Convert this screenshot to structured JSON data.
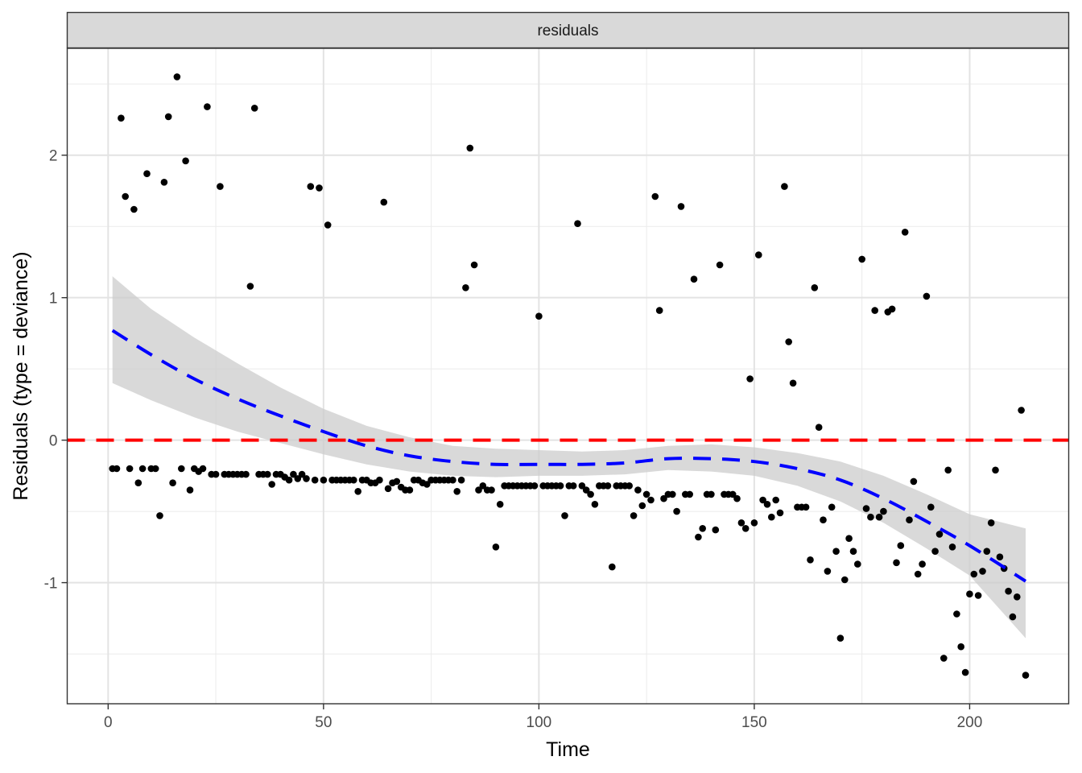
{
  "chart_data": {
    "type": "scatter",
    "facet_label": "residuals",
    "xlabel": "Time",
    "ylabel": "Residuals (type = deviance)",
    "xlim": [
      -9.5,
      223
    ],
    "ylim": [
      -1.85,
      2.75
    ],
    "x_ticks": [
      0,
      50,
      100,
      150,
      200
    ],
    "y_ticks": [
      -1,
      0,
      1,
      2
    ],
    "x_tick_labels": [
      "0",
      "50",
      "100",
      "150",
      "200"
    ],
    "y_tick_labels": [
      "-1",
      "0",
      "1",
      "2"
    ],
    "grid": true,
    "reference_line": {
      "y": 0,
      "color": "#ff0000",
      "style": "dashed"
    },
    "colors": {
      "points": "#000000",
      "smooth_line": "#0000ff",
      "ribbon": "#cccccc",
      "reference": "#ff0000",
      "strip_bg": "#d9d9d9"
    },
    "points": [
      [
        1,
        -0.2
      ],
      [
        2,
        -0.2
      ],
      [
        3,
        2.26
      ],
      [
        4,
        1.71
      ],
      [
        5,
        -0.2
      ],
      [
        6,
        1.62
      ],
      [
        7,
        -0.3
      ],
      [
        8,
        -0.2
      ],
      [
        9,
        1.87
      ],
      [
        10,
        -0.2
      ],
      [
        11,
        -0.2
      ],
      [
        12,
        -0.53
      ],
      [
        13,
        1.81
      ],
      [
        14,
        2.27
      ],
      [
        15,
        -0.3
      ],
      [
        16,
        2.55
      ],
      [
        17,
        -0.2
      ],
      [
        18,
        1.96
      ],
      [
        19,
        -0.35
      ],
      [
        20,
        -0.2
      ],
      [
        21,
        -0.22
      ],
      [
        22,
        -0.2
      ],
      [
        23,
        2.34
      ],
      [
        24,
        -0.24
      ],
      [
        25,
        -0.24
      ],
      [
        26,
        1.78
      ],
      [
        27,
        -0.24
      ],
      [
        28,
        -0.24
      ],
      [
        29,
        -0.24
      ],
      [
        30,
        -0.24
      ],
      [
        31,
        -0.24
      ],
      [
        32,
        -0.24
      ],
      [
        33,
        1.08
      ],
      [
        34,
        2.33
      ],
      [
        35,
        -0.24
      ],
      [
        36,
        -0.24
      ],
      [
        37,
        -0.24
      ],
      [
        38,
        -0.31
      ],
      [
        39,
        -0.24
      ],
      [
        40,
        -0.24
      ],
      [
        41,
        -0.26
      ],
      [
        42,
        -0.28
      ],
      [
        43,
        -0.24
      ],
      [
        44,
        -0.27
      ],
      [
        45,
        -0.24
      ],
      [
        46,
        -0.27
      ],
      [
        47,
        1.78
      ],
      [
        48,
        -0.28
      ],
      [
        49,
        1.77
      ],
      [
        50,
        -0.28
      ],
      [
        51,
        1.51
      ],
      [
        52,
        -0.28
      ],
      [
        53,
        -0.28
      ],
      [
        54,
        -0.28
      ],
      [
        55,
        -0.28
      ],
      [
        56,
        -0.28
      ],
      [
        57,
        -0.28
      ],
      [
        58,
        -0.36
      ],
      [
        59,
        -0.28
      ],
      [
        60,
        -0.28
      ],
      [
        61,
        -0.3
      ],
      [
        62,
        -0.3
      ],
      [
        63,
        -0.28
      ],
      [
        64,
        1.67
      ],
      [
        65,
        -0.34
      ],
      [
        66,
        -0.3
      ],
      [
        67,
        -0.29
      ],
      [
        68,
        -0.33
      ],
      [
        69,
        -0.35
      ],
      [
        70,
        -0.35
      ],
      [
        71,
        -0.28
      ],
      [
        72,
        -0.28
      ],
      [
        73,
        -0.3
      ],
      [
        74,
        -0.31
      ],
      [
        75,
        -0.28
      ],
      [
        76,
        -0.28
      ],
      [
        77,
        -0.28
      ],
      [
        78,
        -0.28
      ],
      [
        79,
        -0.28
      ],
      [
        80,
        -0.28
      ],
      [
        81,
        -0.36
      ],
      [
        82,
        -0.28
      ],
      [
        83,
        1.07
      ],
      [
        84,
        2.05
      ],
      [
        85,
        1.23
      ],
      [
        86,
        -0.35
      ],
      [
        87,
        -0.32
      ],
      [
        88,
        -0.35
      ],
      [
        89,
        -0.35
      ],
      [
        90,
        -0.75
      ],
      [
        91,
        -0.45
      ],
      [
        92,
        -0.32
      ],
      [
        93,
        -0.32
      ],
      [
        94,
        -0.32
      ],
      [
        95,
        -0.32
      ],
      [
        96,
        -0.32
      ],
      [
        97,
        -0.32
      ],
      [
        98,
        -0.32
      ],
      [
        99,
        -0.32
      ],
      [
        100,
        0.87
      ],
      [
        101,
        -0.32
      ],
      [
        102,
        -0.32
      ],
      [
        103,
        -0.32
      ],
      [
        104,
        -0.32
      ],
      [
        105,
        -0.32
      ],
      [
        106,
        -0.53
      ],
      [
        107,
        -0.32
      ],
      [
        108,
        -0.32
      ],
      [
        109,
        1.52
      ],
      [
        110,
        -0.32
      ],
      [
        111,
        -0.35
      ],
      [
        112,
        -0.38
      ],
      [
        113,
        -0.45
      ],
      [
        114,
        -0.32
      ],
      [
        115,
        -0.32
      ],
      [
        116,
        -0.32
      ],
      [
        117,
        -0.89
      ],
      [
        118,
        -0.32
      ],
      [
        119,
        -0.32
      ],
      [
        120,
        -0.32
      ],
      [
        121,
        -0.32
      ],
      [
        122,
        -0.53
      ],
      [
        123,
        -0.35
      ],
      [
        124,
        -0.46
      ],
      [
        125,
        -0.38
      ],
      [
        126,
        -0.42
      ],
      [
        127,
        1.71
      ],
      [
        128,
        0.91
      ],
      [
        129,
        -0.41
      ],
      [
        130,
        -0.38
      ],
      [
        131,
        -0.38
      ],
      [
        132,
        -0.5
      ],
      [
        133,
        1.64
      ],
      [
        134,
        -0.38
      ],
      [
        135,
        -0.38
      ],
      [
        136,
        1.13
      ],
      [
        137,
        -0.68
      ],
      [
        138,
        -0.62
      ],
      [
        139,
        -0.38
      ],
      [
        140,
        -0.38
      ],
      [
        141,
        -0.63
      ],
      [
        142,
        1.23
      ],
      [
        143,
        -0.38
      ],
      [
        144,
        -0.38
      ],
      [
        145,
        -0.38
      ],
      [
        146,
        -0.41
      ],
      [
        147,
        -0.58
      ],
      [
        148,
        -0.62
      ],
      [
        149,
        0.43
      ],
      [
        150,
        -0.58
      ],
      [
        151,
        1.3
      ],
      [
        152,
        -0.42
      ],
      [
        153,
        -0.45
      ],
      [
        154,
        -0.54
      ],
      [
        155,
        -0.42
      ],
      [
        156,
        -0.51
      ],
      [
        157,
        1.78
      ],
      [
        158,
        0.69
      ],
      [
        159,
        0.4
      ],
      [
        160,
        -0.47
      ],
      [
        161,
        -0.47
      ],
      [
        162,
        -0.47
      ],
      [
        163,
        -0.84
      ],
      [
        164,
        1.07
      ],
      [
        165,
        0.09
      ],
      [
        166,
        -0.56
      ],
      [
        167,
        -0.92
      ],
      [
        168,
        -0.47
      ],
      [
        169,
        -0.78
      ],
      [
        170,
        -1.39
      ],
      [
        171,
        -0.98
      ],
      [
        172,
        -0.69
      ],
      [
        173,
        -0.78
      ],
      [
        174,
        -0.87
      ],
      [
        175,
        1.27
      ],
      [
        176,
        -0.48
      ],
      [
        177,
        -0.54
      ],
      [
        178,
        0.91
      ],
      [
        179,
        -0.54
      ],
      [
        180,
        -0.5
      ],
      [
        181,
        0.9
      ],
      [
        182,
        0.92
      ],
      [
        183,
        -0.86
      ],
      [
        184,
        -0.74
      ],
      [
        185,
        1.46
      ],
      [
        186,
        -0.56
      ],
      [
        187,
        -0.29
      ],
      [
        188,
        -0.94
      ],
      [
        189,
        -0.87
      ],
      [
        190,
        1.01
      ],
      [
        191,
        -0.47
      ],
      [
        192,
        -0.78
      ],
      [
        193,
        -0.66
      ],
      [
        194,
        -1.53
      ],
      [
        195,
        -0.21
      ],
      [
        196,
        -0.75
      ],
      [
        197,
        -1.22
      ],
      [
        198,
        -1.45
      ],
      [
        199,
        -1.63
      ],
      [
        200,
        -1.08
      ],
      [
        201,
        -0.94
      ],
      [
        202,
        -1.09
      ],
      [
        203,
        -0.92
      ],
      [
        204,
        -0.78
      ],
      [
        205,
        -0.58
      ],
      [
        206,
        -0.21
      ],
      [
        207,
        -0.82
      ],
      [
        208,
        -0.9
      ],
      [
        209,
        -1.06
      ],
      [
        210,
        -1.24
      ],
      [
        211,
        -1.1
      ],
      [
        212,
        0.21
      ],
      [
        213,
        -1.65
      ]
    ],
    "smooth": {
      "x": [
        1,
        10,
        20,
        30,
        40,
        50,
        60,
        70,
        80,
        90,
        100,
        110,
        120,
        130,
        140,
        150,
        160,
        170,
        180,
        190,
        200,
        213
      ],
      "y": [
        0.77,
        0.6,
        0.43,
        0.29,
        0.17,
        0.06,
        -0.04,
        -0.11,
        -0.15,
        -0.17,
        -0.17,
        -0.17,
        -0.16,
        -0.13,
        -0.13,
        -0.15,
        -0.2,
        -0.28,
        -0.41,
        -0.57,
        -0.74,
        -0.99
      ],
      "lower": [
        0.4,
        0.28,
        0.16,
        0.06,
        -0.02,
        -0.1,
        -0.17,
        -0.22,
        -0.25,
        -0.26,
        -0.25,
        -0.25,
        -0.24,
        -0.21,
        -0.22,
        -0.25,
        -0.32,
        -0.43,
        -0.58,
        -0.76,
        -0.95,
        -1.39
      ],
      "upper": [
        1.15,
        0.92,
        0.72,
        0.54,
        0.37,
        0.22,
        0.1,
        0.02,
        -0.04,
        -0.06,
        -0.07,
        -0.08,
        -0.07,
        -0.04,
        -0.03,
        -0.05,
        -0.09,
        -0.15,
        -0.25,
        -0.38,
        -0.52,
        -0.62
      ]
    }
  }
}
